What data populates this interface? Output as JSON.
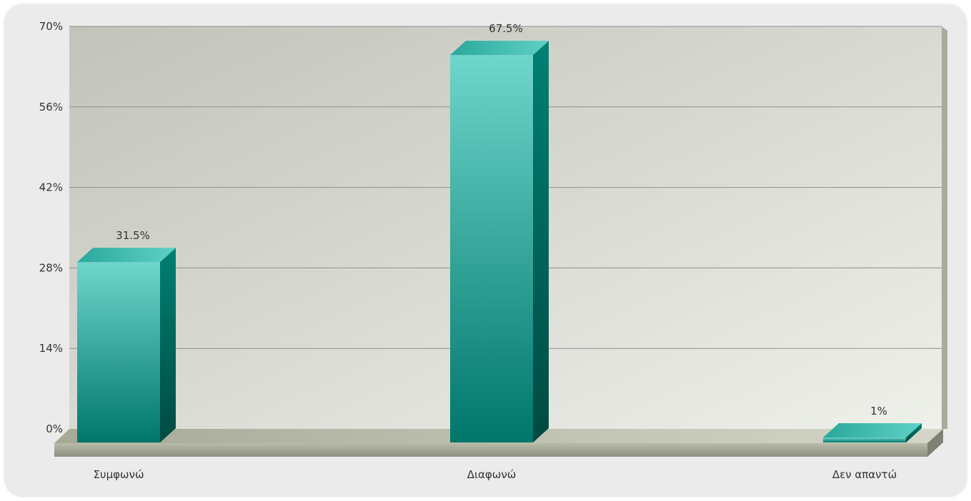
{
  "chart_data": {
    "type": "bar",
    "categories": [
      "Συμφωνώ",
      "Διαφωνώ",
      "Δεν απαντώ"
    ],
    "series": [
      {
        "values": [
          31.5,
          67.5,
          1
        ],
        "labels": [
          "31.5%",
          "67.5%",
          "1%"
        ]
      }
    ],
    "y_ticks": [
      "0%",
      "14%",
      "28%",
      "42%",
      "56%",
      "70%"
    ],
    "y_tick_values": [
      0,
      14,
      28,
      42,
      56,
      70
    ],
    "ylim": [
      0,
      70
    ],
    "grid": true,
    "style": "3d",
    "title": "",
    "xlabel": "",
    "ylabel": "",
    "colors": {
      "bar_front_top": "#6fd6cc",
      "bar_front_bottom": "#00766a",
      "bar_side": "#005a50",
      "bar_top": "#3fbfb2",
      "plot_bg_left": "#c2c4bb",
      "plot_bg_right": "#eef0ea",
      "gridline": "#8e928a",
      "floor": "#b0b2a2"
    }
  }
}
